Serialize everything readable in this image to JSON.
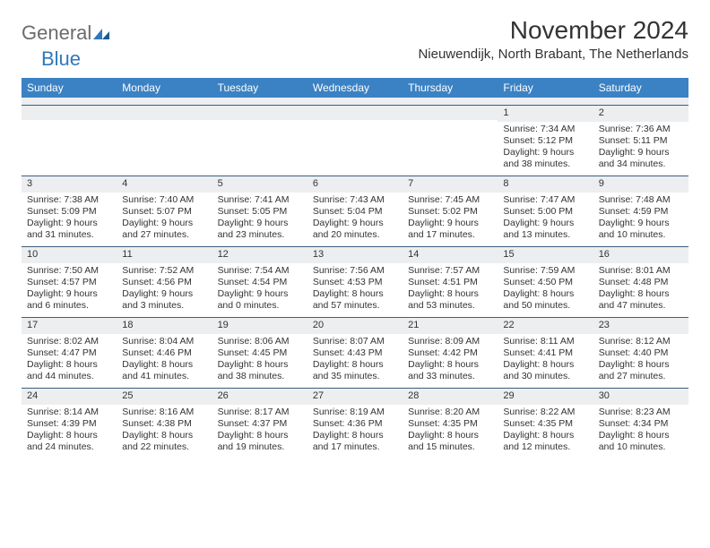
{
  "logo": {
    "part1": "General",
    "part2": "Blue"
  },
  "title": "November 2024",
  "subtitle": "Nieuwendijk, North Brabant, The Netherlands",
  "colors": {
    "header_bg": "#3b82c4",
    "header_text": "#ffffff",
    "daynum_bg": "#eceef0",
    "border": "#3b5e7e",
    "text": "#333333",
    "logo_gray": "#6b6b6b",
    "logo_blue": "#2f78bd"
  },
  "dayNames": [
    "Sunday",
    "Monday",
    "Tuesday",
    "Wednesday",
    "Thursday",
    "Friday",
    "Saturday"
  ],
  "weeks": [
    [
      {
        "num": "",
        "sunrise": "",
        "sunset": "",
        "daylight": ""
      },
      {
        "num": "",
        "sunrise": "",
        "sunset": "",
        "daylight": ""
      },
      {
        "num": "",
        "sunrise": "",
        "sunset": "",
        "daylight": ""
      },
      {
        "num": "",
        "sunrise": "",
        "sunset": "",
        "daylight": ""
      },
      {
        "num": "",
        "sunrise": "",
        "sunset": "",
        "daylight": ""
      },
      {
        "num": "1",
        "sunrise": "Sunrise: 7:34 AM",
        "sunset": "Sunset: 5:12 PM",
        "daylight": "Daylight: 9 hours and 38 minutes."
      },
      {
        "num": "2",
        "sunrise": "Sunrise: 7:36 AM",
        "sunset": "Sunset: 5:11 PM",
        "daylight": "Daylight: 9 hours and 34 minutes."
      }
    ],
    [
      {
        "num": "3",
        "sunrise": "Sunrise: 7:38 AM",
        "sunset": "Sunset: 5:09 PM",
        "daylight": "Daylight: 9 hours and 31 minutes."
      },
      {
        "num": "4",
        "sunrise": "Sunrise: 7:40 AM",
        "sunset": "Sunset: 5:07 PM",
        "daylight": "Daylight: 9 hours and 27 minutes."
      },
      {
        "num": "5",
        "sunrise": "Sunrise: 7:41 AM",
        "sunset": "Sunset: 5:05 PM",
        "daylight": "Daylight: 9 hours and 23 minutes."
      },
      {
        "num": "6",
        "sunrise": "Sunrise: 7:43 AM",
        "sunset": "Sunset: 5:04 PM",
        "daylight": "Daylight: 9 hours and 20 minutes."
      },
      {
        "num": "7",
        "sunrise": "Sunrise: 7:45 AM",
        "sunset": "Sunset: 5:02 PM",
        "daylight": "Daylight: 9 hours and 17 minutes."
      },
      {
        "num": "8",
        "sunrise": "Sunrise: 7:47 AM",
        "sunset": "Sunset: 5:00 PM",
        "daylight": "Daylight: 9 hours and 13 minutes."
      },
      {
        "num": "9",
        "sunrise": "Sunrise: 7:48 AM",
        "sunset": "Sunset: 4:59 PM",
        "daylight": "Daylight: 9 hours and 10 minutes."
      }
    ],
    [
      {
        "num": "10",
        "sunrise": "Sunrise: 7:50 AM",
        "sunset": "Sunset: 4:57 PM",
        "daylight": "Daylight: 9 hours and 6 minutes."
      },
      {
        "num": "11",
        "sunrise": "Sunrise: 7:52 AM",
        "sunset": "Sunset: 4:56 PM",
        "daylight": "Daylight: 9 hours and 3 minutes."
      },
      {
        "num": "12",
        "sunrise": "Sunrise: 7:54 AM",
        "sunset": "Sunset: 4:54 PM",
        "daylight": "Daylight: 9 hours and 0 minutes."
      },
      {
        "num": "13",
        "sunrise": "Sunrise: 7:56 AM",
        "sunset": "Sunset: 4:53 PM",
        "daylight": "Daylight: 8 hours and 57 minutes."
      },
      {
        "num": "14",
        "sunrise": "Sunrise: 7:57 AM",
        "sunset": "Sunset: 4:51 PM",
        "daylight": "Daylight: 8 hours and 53 minutes."
      },
      {
        "num": "15",
        "sunrise": "Sunrise: 7:59 AM",
        "sunset": "Sunset: 4:50 PM",
        "daylight": "Daylight: 8 hours and 50 minutes."
      },
      {
        "num": "16",
        "sunrise": "Sunrise: 8:01 AM",
        "sunset": "Sunset: 4:48 PM",
        "daylight": "Daylight: 8 hours and 47 minutes."
      }
    ],
    [
      {
        "num": "17",
        "sunrise": "Sunrise: 8:02 AM",
        "sunset": "Sunset: 4:47 PM",
        "daylight": "Daylight: 8 hours and 44 minutes."
      },
      {
        "num": "18",
        "sunrise": "Sunrise: 8:04 AM",
        "sunset": "Sunset: 4:46 PM",
        "daylight": "Daylight: 8 hours and 41 minutes."
      },
      {
        "num": "19",
        "sunrise": "Sunrise: 8:06 AM",
        "sunset": "Sunset: 4:45 PM",
        "daylight": "Daylight: 8 hours and 38 minutes."
      },
      {
        "num": "20",
        "sunrise": "Sunrise: 8:07 AM",
        "sunset": "Sunset: 4:43 PM",
        "daylight": "Daylight: 8 hours and 35 minutes."
      },
      {
        "num": "21",
        "sunrise": "Sunrise: 8:09 AM",
        "sunset": "Sunset: 4:42 PM",
        "daylight": "Daylight: 8 hours and 33 minutes."
      },
      {
        "num": "22",
        "sunrise": "Sunrise: 8:11 AM",
        "sunset": "Sunset: 4:41 PM",
        "daylight": "Daylight: 8 hours and 30 minutes."
      },
      {
        "num": "23",
        "sunrise": "Sunrise: 8:12 AM",
        "sunset": "Sunset: 4:40 PM",
        "daylight": "Daylight: 8 hours and 27 minutes."
      }
    ],
    [
      {
        "num": "24",
        "sunrise": "Sunrise: 8:14 AM",
        "sunset": "Sunset: 4:39 PM",
        "daylight": "Daylight: 8 hours and 24 minutes."
      },
      {
        "num": "25",
        "sunrise": "Sunrise: 8:16 AM",
        "sunset": "Sunset: 4:38 PM",
        "daylight": "Daylight: 8 hours and 22 minutes."
      },
      {
        "num": "26",
        "sunrise": "Sunrise: 8:17 AM",
        "sunset": "Sunset: 4:37 PM",
        "daylight": "Daylight: 8 hours and 19 minutes."
      },
      {
        "num": "27",
        "sunrise": "Sunrise: 8:19 AM",
        "sunset": "Sunset: 4:36 PM",
        "daylight": "Daylight: 8 hours and 17 minutes."
      },
      {
        "num": "28",
        "sunrise": "Sunrise: 8:20 AM",
        "sunset": "Sunset: 4:35 PM",
        "daylight": "Daylight: 8 hours and 15 minutes."
      },
      {
        "num": "29",
        "sunrise": "Sunrise: 8:22 AM",
        "sunset": "Sunset: 4:35 PM",
        "daylight": "Daylight: 8 hours and 12 minutes."
      },
      {
        "num": "30",
        "sunrise": "Sunrise: 8:23 AM",
        "sunset": "Sunset: 4:34 PM",
        "daylight": "Daylight: 8 hours and 10 minutes."
      }
    ]
  ]
}
